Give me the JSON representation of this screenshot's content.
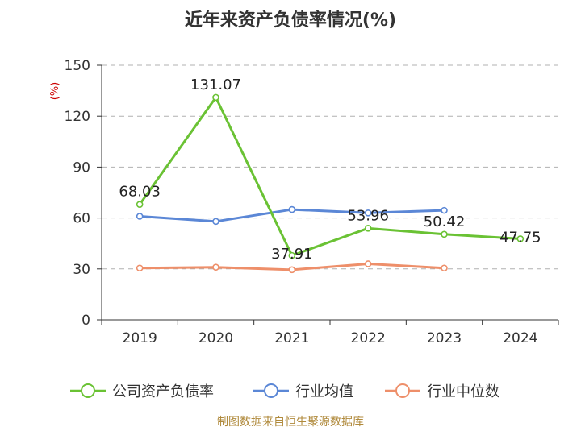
{
  "chart_data": {
    "type": "line",
    "title": "近年来资产负债率情况(%)",
    "ylabel": "(%)",
    "ylim": [
      0,
      150
    ],
    "yticks": [
      0,
      30,
      60,
      90,
      120,
      150
    ],
    "categories": [
      "2019",
      "2020",
      "2021",
      "2022",
      "2023",
      "2024"
    ],
    "grid": true,
    "legend_position": "bottom",
    "series": [
      {
        "name": "公司资产负债率",
        "color": "#6ac234",
        "values": [
          68.03,
          131.07,
          37.91,
          53.96,
          50.42,
          47.75
        ],
        "labels": [
          "68.03",
          "131.07",
          "37.91",
          "53.96",
          "50.42",
          "47.75"
        ]
      },
      {
        "name": "行业均值",
        "color": "#5b87d6",
        "values": [
          61.0,
          58.0,
          65.0,
          63.0,
          64.5,
          null
        ]
      },
      {
        "name": "行业中位数",
        "color": "#ee8f6a",
        "values": [
          30.5,
          31.0,
          29.5,
          33.0,
          30.5,
          null
        ]
      }
    ]
  },
  "footer": {
    "source": "制图数据来自恒生聚源数据库"
  }
}
